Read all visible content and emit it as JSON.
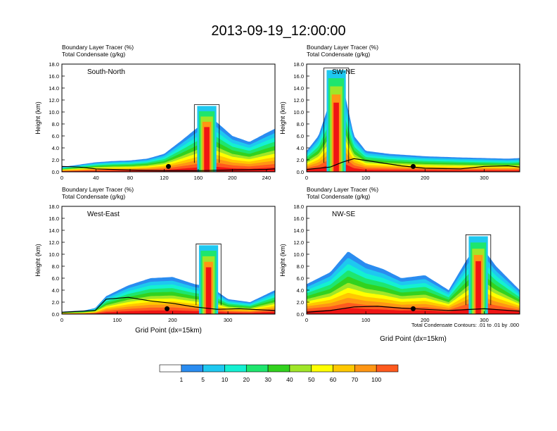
{
  "title": "2013-09-19_12:00:00",
  "colors": {
    "scale": [
      "#ffffff",
      "#2a8cf0",
      "#1ec8f0",
      "#14f0d2",
      "#1ee66e",
      "#32d21e",
      "#a0e628",
      "#ffff00",
      "#ffc800",
      "#ff9614",
      "#ff5a1e",
      "#f01414"
    ],
    "terrain": "#000000",
    "contour": "#000000",
    "frame": "#000000"
  },
  "panels": [
    {
      "id": "south-north",
      "label_line1": "Boundary Layer Tracer   (%)",
      "label_line2": "Total Condensate   (g/kg)",
      "section_name": "South-North",
      "xlabel": "",
      "ylabel": "Height (km)",
      "xlim": [
        0,
        250
      ],
      "ylim": [
        0,
        18
      ],
      "xticks": [
        "0",
        "40",
        "80",
        "120",
        "160",
        "200",
        "240"
      ],
      "yticks": [
        "0.0",
        "2.0",
        "4.0",
        "6.0",
        "8.0",
        "10.0",
        "12.0",
        "14.0",
        "16.0",
        "18.0"
      ],
      "marker_x": 125,
      "profile": [
        [
          0,
          0.8
        ],
        [
          20,
          1.2
        ],
        [
          40,
          1.6
        ],
        [
          60,
          1.8
        ],
        [
          80,
          1.9
        ],
        [
          100,
          2.2
        ],
        [
          120,
          3.0
        ],
        [
          140,
          5.2
        ],
        [
          160,
          7.5
        ],
        [
          180,
          8.5
        ],
        [
          200,
          6.0
        ],
        [
          220,
          5.0
        ],
        [
          240,
          6.5
        ],
        [
          250,
          7.2
        ]
      ],
      "tower_x": 170,
      "tower_top": 11.0,
      "terrain": [
        [
          0,
          0.9
        ],
        [
          20,
          0.8
        ],
        [
          40,
          0.5
        ],
        [
          60,
          0.4
        ],
        [
          80,
          0.3
        ],
        [
          120,
          0.2
        ],
        [
          160,
          0.2
        ],
        [
          200,
          0.3
        ],
        [
          240,
          0.4
        ],
        [
          250,
          0.5
        ]
      ]
    },
    {
      "id": "sw-ne",
      "label_line1": "Boundary Layer Tracer   (%)",
      "label_line2": "Total Condensate   (g/kg)",
      "section_name": "SW-NE",
      "xlabel": "",
      "ylabel": "Height (km)",
      "xlim": [
        0,
        360
      ],
      "ylim": [
        0,
        18
      ],
      "xticks": [
        "0",
        "100",
        "200",
        "300"
      ],
      "yticks": [
        "0.0",
        "2.0",
        "4.0",
        "6.0",
        "8.0",
        "10.0",
        "12.0",
        "14.0",
        "16.0",
        "18.0"
      ],
      "marker_x": 180,
      "profile": [
        [
          0,
          3.5
        ],
        [
          20,
          6.0
        ],
        [
          40,
          12.0
        ],
        [
          60,
          15.0
        ],
        [
          80,
          6.0
        ],
        [
          100,
          3.5
        ],
        [
          140,
          3.0
        ],
        [
          200,
          2.6
        ],
        [
          260,
          2.4
        ],
        [
          300,
          2.3
        ],
        [
          340,
          2.2
        ],
        [
          360,
          2.3
        ]
      ],
      "tower_x": 50,
      "tower_top": 17.0,
      "terrain": [
        [
          0,
          0.4
        ],
        [
          40,
          0.8
        ],
        [
          60,
          1.6
        ],
        [
          80,
          2.2
        ],
        [
          120,
          1.6
        ],
        [
          160,
          1.0
        ],
        [
          200,
          0.6
        ],
        [
          260,
          0.5
        ],
        [
          300,
          0.9
        ],
        [
          340,
          1.0
        ],
        [
          360,
          0.8
        ]
      ]
    },
    {
      "id": "west-east",
      "label_line1": "Boundary Layer Tracer   (%)",
      "label_line2": "Total Condensate   (g/kg)",
      "section_name": "West-East",
      "xlabel": "Grid Point (dx=15km)",
      "ylabel": "Height (km)",
      "xlim": [
        0,
        385
      ],
      "ylim": [
        0,
        18
      ],
      "xticks": [
        "0",
        "100",
        "200",
        "300"
      ],
      "yticks": [
        "0.0",
        "2.0",
        "4.0",
        "6.0",
        "8.0",
        "10.0",
        "12.0",
        "14.0",
        "16.0",
        "18.0"
      ],
      "marker_x": 190,
      "profile": [
        [
          0,
          0.4
        ],
        [
          40,
          0.6
        ],
        [
          60,
          1.0
        ],
        [
          80,
          3.0
        ],
        [
          120,
          4.8
        ],
        [
          160,
          6.0
        ],
        [
          200,
          6.2
        ],
        [
          240,
          5.0
        ],
        [
          270,
          4.5
        ],
        [
          300,
          2.5
        ],
        [
          340,
          2.0
        ],
        [
          385,
          4.0
        ]
      ],
      "tower_x": 265,
      "tower_top": 11.5,
      "terrain": [
        [
          0,
          0.3
        ],
        [
          60,
          0.6
        ],
        [
          80,
          2.5
        ],
        [
          120,
          2.8
        ],
        [
          160,
          2.2
        ],
        [
          200,
          1.8
        ],
        [
          240,
          1.2
        ],
        [
          280,
          0.8
        ],
        [
          320,
          0.9
        ],
        [
          385,
          0.6
        ]
      ]
    },
    {
      "id": "nw-se",
      "label_line1": "Boundary Layer Tracer   (%)",
      "label_line2": "Total Condensate   (g/kg)",
      "section_name": "NW-SE",
      "xlabel": "Grid Point (dx=15km)",
      "ylabel": "Height (km)",
      "xlim": [
        0,
        360
      ],
      "ylim": [
        0,
        18
      ],
      "xticks": [
        "0",
        "100",
        "200",
        "300"
      ],
      "yticks": [
        "0.0",
        "2.0",
        "4.0",
        "6.0",
        "8.0",
        "10.0",
        "12.0",
        "14.0",
        "16.0",
        "18.0"
      ],
      "marker_x": 180,
      "profile": [
        [
          0,
          5.0
        ],
        [
          40,
          7.0
        ],
        [
          70,
          10.5
        ],
        [
          100,
          8.5
        ],
        [
          130,
          7.5
        ],
        [
          160,
          6.0
        ],
        [
          200,
          6.5
        ],
        [
          240,
          4.0
        ],
        [
          270,
          9.0
        ],
        [
          290,
          12.0
        ],
        [
          320,
          8.0
        ],
        [
          360,
          4.0
        ]
      ],
      "tower_x": 290,
      "tower_top": 13.0,
      "terrain": [
        [
          0,
          0.3
        ],
        [
          40,
          0.6
        ],
        [
          80,
          1.2
        ],
        [
          120,
          1.3
        ],
        [
          160,
          1.0
        ],
        [
          200,
          0.8
        ],
        [
          240,
          0.6
        ],
        [
          300,
          0.9
        ],
        [
          360,
          0.5
        ]
      ]
    }
  ],
  "contour_note": "Total Condensate Contours: .01 to .01 by .000",
  "colorbar_labels": [
    "1",
    "5",
    "10",
    "20",
    "30",
    "40",
    "50",
    "60",
    "70",
    "100"
  ]
}
